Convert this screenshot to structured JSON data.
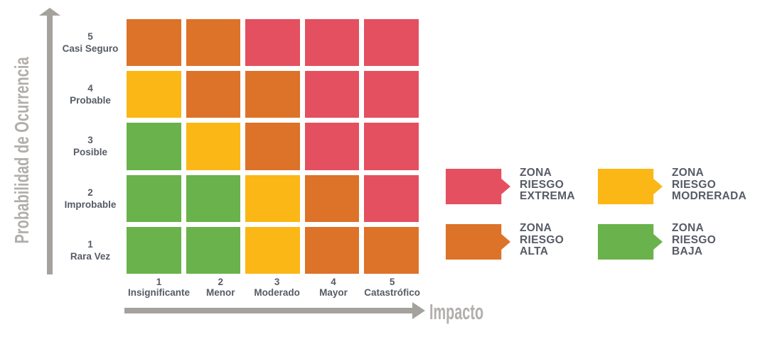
{
  "colors": {
    "extrema": "#E4505F",
    "alta": "#DD7229",
    "moderada": "#FBB715",
    "baja": "#6AB24B",
    "axis_arrow": "#A5A19D",
    "axis_title": "#B2AEAB",
    "label_text": "#565B66"
  },
  "chart_data": {
    "type": "heatmap",
    "title": "",
    "xlabel": "Impacto",
    "ylabel": "Probabilidad de Ocurrencia",
    "x_categories": [
      {
        "value": "1",
        "label": "Insignificante"
      },
      {
        "value": "2",
        "label": "Menor"
      },
      {
        "value": "3",
        "label": "Moderado"
      },
      {
        "value": "4",
        "label": "Mayor"
      },
      {
        "value": "5",
        "label": "Catastrófico"
      }
    ],
    "y_categories": [
      {
        "value": "5",
        "label": "Casi Seguro"
      },
      {
        "value": "4",
        "label": "Probable"
      },
      {
        "value": "3",
        "label": "Posible"
      },
      {
        "value": "2",
        "label": "Improbable"
      },
      {
        "value": "1",
        "label": "Rara Vez"
      }
    ],
    "cells": [
      [
        "alta",
        "alta",
        "extrema",
        "extrema",
        "extrema"
      ],
      [
        "moderada",
        "alta",
        "alta",
        "extrema",
        "extrema"
      ],
      [
        "baja",
        "moderada",
        "alta",
        "extrema",
        "extrema"
      ],
      [
        "baja",
        "baja",
        "moderada",
        "alta",
        "extrema"
      ],
      [
        "baja",
        "baja",
        "moderada",
        "alta",
        "alta"
      ]
    ],
    "legend_position": "right",
    "grid": false
  },
  "legend": [
    {
      "zone": "extrema",
      "lines": [
        "ZONA",
        "RIESGO",
        "EXTREMA"
      ]
    },
    {
      "zone": "moderada",
      "lines": [
        "ZONA",
        "RIESGO",
        "MODRERADA"
      ]
    },
    {
      "zone": "alta",
      "lines": [
        "ZONA",
        "RIESGO",
        "ALTA"
      ]
    },
    {
      "zone": "baja",
      "lines": [
        "ZONA",
        "RIESGO",
        "BAJA"
      ]
    }
  ]
}
